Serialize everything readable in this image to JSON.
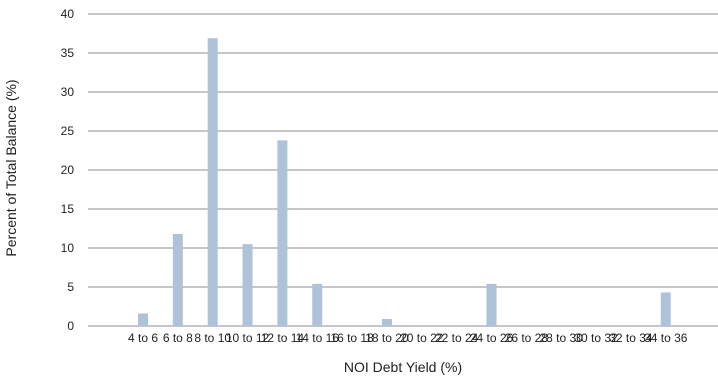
{
  "chart_data": {
    "type": "bar",
    "xlabel": "NOI Debt Yield (%)",
    "ylabel": "Percent of Total Balance (%)",
    "ylim": [
      0,
      40
    ],
    "yticks": [
      "0",
      "5",
      "10",
      "15",
      "20",
      "25",
      "30",
      "35",
      "40"
    ],
    "grid": true,
    "categories": [
      "4 to 6",
      "6 to 8",
      "8 to 10",
      "10 to 12",
      "12 to 14",
      "14 to 16",
      "16 to 18",
      "18 to 20",
      "20 to 22",
      "22 to 24",
      "24 to 26",
      "26 to 28",
      "28 to 30",
      "30 to 32",
      "32 to 34",
      "34 to 36"
    ],
    "values": [
      1.6,
      11.8,
      36.9,
      10.5,
      23.8,
      5.4,
      0,
      0.9,
      0,
      0,
      5.4,
      0,
      0,
      0,
      0,
      4.3
    ],
    "bar_color": "#aec2d9",
    "grid_color": "#8e8e8e"
  }
}
